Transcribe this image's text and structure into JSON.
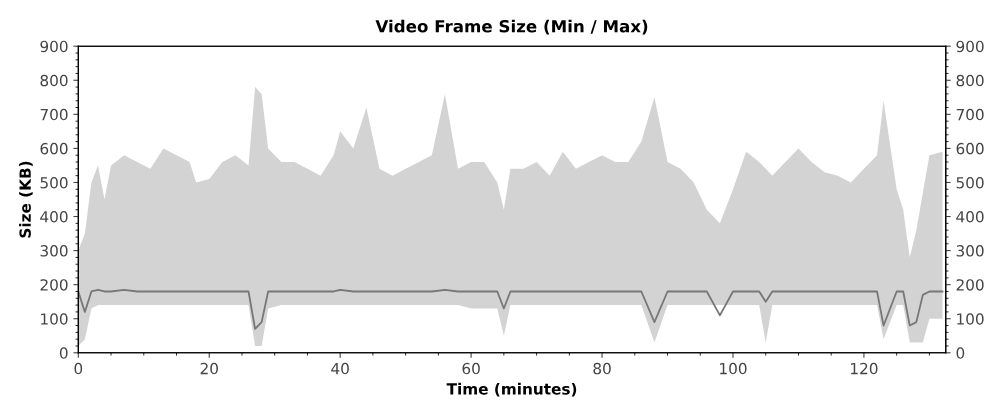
{
  "chart_data": {
    "type": "line",
    "title": "Video Frame Size (Min / Max)",
    "xlabel": "Time (minutes)",
    "ylabel": "Size (KB)",
    "x": [
      0,
      1,
      2,
      3,
      4,
      5,
      7,
      9,
      11,
      13,
      15,
      17,
      18,
      20,
      22,
      24,
      26,
      27,
      28,
      29,
      31,
      33,
      35,
      37,
      39,
      40,
      42,
      44,
      46,
      48,
      50,
      52,
      54,
      56,
      58,
      60,
      62,
      64,
      65,
      66,
      68,
      70,
      72,
      74,
      76,
      78,
      80,
      82,
      84,
      86,
      88,
      90,
      92,
      94,
      96,
      98,
      100,
      102,
      104,
      105,
      106,
      108,
      110,
      112,
      114,
      116,
      118,
      120,
      122,
      123,
      125,
      126,
      127,
      128,
      129,
      130,
      132
    ],
    "series": [
      {
        "color": "#777777",
        "values": [
          180,
          120,
          180,
          185,
          180,
          180,
          185,
          180,
          180,
          180,
          180,
          180,
          180,
          180,
          180,
          180,
          180,
          70,
          90,
          180,
          180,
          180,
          180,
          180,
          180,
          185,
          180,
          180,
          180,
          180,
          180,
          180,
          180,
          185,
          180,
          180,
          180,
          180,
          130,
          180,
          180,
          180,
          180,
          180,
          180,
          180,
          180,
          180,
          180,
          180,
          90,
          180,
          180,
          180,
          180,
          110,
          180,
          180,
          180,
          150,
          180,
          180,
          180,
          180,
          180,
          180,
          180,
          180,
          180,
          80,
          180,
          180,
          80,
          90,
          170,
          180,
          180
        ],
        "upper": [
          300,
          350,
          500,
          550,
          450,
          550,
          580,
          560,
          540,
          600,
          580,
          560,
          500,
          510,
          560,
          580,
          550,
          780,
          760,
          600,
          560,
          560,
          540,
          520,
          580,
          650,
          600,
          720,
          540,
          520,
          540,
          560,
          580,
          760,
          540,
          560,
          560,
          500,
          420,
          540,
          540,
          560,
          520,
          590,
          540,
          560,
          580,
          560,
          560,
          620,
          750,
          560,
          540,
          500,
          420,
          380,
          480,
          590,
          560,
          540,
          520,
          560,
          600,
          560,
          530,
          520,
          500,
          540,
          580,
          740,
          480,
          420,
          280,
          360,
          470,
          580,
          590
        ],
        "lower": [
          20,
          40,
          130,
          140,
          140,
          140,
          140,
          140,
          140,
          140,
          140,
          140,
          140,
          140,
          140,
          140,
          140,
          20,
          20,
          130,
          140,
          140,
          140,
          140,
          140,
          140,
          140,
          140,
          140,
          140,
          140,
          140,
          140,
          140,
          140,
          130,
          130,
          130,
          50,
          140,
          140,
          140,
          140,
          140,
          140,
          140,
          140,
          140,
          140,
          140,
          30,
          140,
          140,
          140,
          140,
          140,
          140,
          140,
          140,
          30,
          140,
          140,
          140,
          140,
          140,
          140,
          140,
          140,
          140,
          40,
          140,
          140,
          30,
          30,
          30,
          100,
          100
        ]
      }
    ],
    "xlim": [
      0,
      132.5
    ],
    "xticks": [
      0,
      20,
      40,
      60,
      80,
      100,
      120
    ],
    "ylim": [
      0,
      900
    ],
    "yticks": [
      0,
      100,
      200,
      300,
      400,
      500,
      600,
      700,
      800,
      900
    ],
    "y2lim": [
      0,
      900
    ],
    "y2ticks": [
      0,
      100,
      200,
      300,
      400,
      500,
      600,
      700,
      800,
      900
    ],
    "grid": false,
    "legend": false,
    "marker": "none",
    "line_style": "solid"
  }
}
